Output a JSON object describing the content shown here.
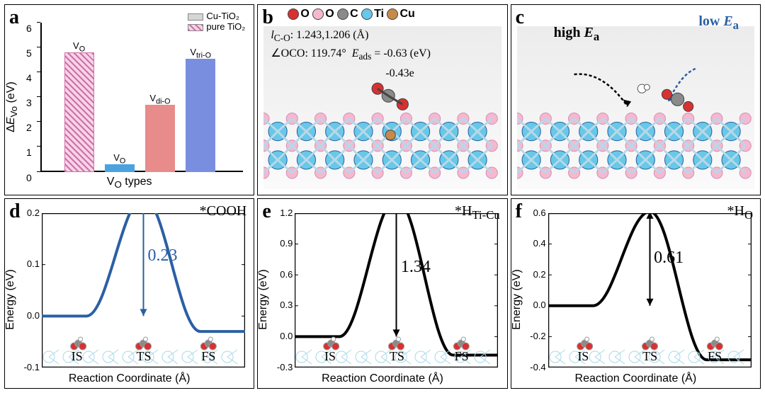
{
  "panelA": {
    "label": "a",
    "type": "bar",
    "ylabel": "ΔEᵥₒ (eV)",
    "xlabel": "Vₒ types",
    "ylim": [
      0,
      6
    ],
    "ytick_step": 1,
    "legend": [
      {
        "label": "Cu-TiO₂",
        "color": "#d6d6d6",
        "hatched": false
      },
      {
        "label": "pure TiO₂",
        "color": "#d06fa8",
        "hatched": true
      }
    ],
    "bars": [
      {
        "name": "Vₒ",
        "value": 4.8,
        "color": "#d06fa8",
        "hatched": true
      },
      {
        "name": "Vₒ",
        "value": 0.3,
        "color": "#4aa3df",
        "hatched": false
      },
      {
        "name": "V_di-O",
        "value": 2.7,
        "color": "#e88b8b",
        "hatched": false
      },
      {
        "name": "V_tri-O",
        "value": 4.55,
        "color": "#7a8ee0",
        "hatched": false
      }
    ],
    "background": "#ffffff",
    "axis_fontsize": 16,
    "tick_fontsize": 14
  },
  "panelB": {
    "label": "b",
    "atoms": [
      {
        "name": "O",
        "color": "#d83131"
      },
      {
        "name": "O",
        "color": "#f5b8cf"
      },
      {
        "name": "C",
        "color": "#8a8a8a"
      },
      {
        "name": "Ti",
        "color": "#67c8e8"
      },
      {
        "name": "Cu",
        "color": "#c88a4a"
      }
    ],
    "l_co_label": "I_C-O:",
    "l_co": "1.243,1.206 (Å)",
    "angle_label": "∠OCO:",
    "angle": "119.74°",
    "eads_label": "E_ads =",
    "eads": "-0.63 (eV)",
    "charge": "-0.43e"
  },
  "panelC": {
    "label": "c",
    "high_ea": "high Eₐ",
    "low_ea": "low Eₐ",
    "high_color": "#000000",
    "low_color": "#2a5fa3"
  },
  "panelD": {
    "label": "d",
    "species": "*COOH",
    "ylabel": "Energy (eV)",
    "xlabel": "Reaction Coordinate (Å)",
    "ylim": [
      -0.1,
      0.2
    ],
    "yticks": [
      -0.1,
      0.0,
      0.1,
      0.2
    ],
    "barrier": "0.23",
    "barrier_value": 0.23,
    "curve_color": "#2a5fa3",
    "states": [
      "IS",
      "TS",
      "FS"
    ],
    "start_y": 0.0,
    "end_y": -0.03
  },
  "panelE": {
    "label": "e",
    "species": "*H_Ti-Cu",
    "ylabel": "Energy (eV)",
    "xlabel": "Reaction Coordinate (Å)",
    "ylim": [
      -0.3,
      1.2
    ],
    "yticks": [
      -0.3,
      0.0,
      0.3,
      0.6,
      0.9,
      1.2
    ],
    "barrier": "1.34",
    "barrier_value": 1.34,
    "curve_color": "#000000",
    "states": [
      "IS",
      "TS",
      "FS"
    ],
    "start_y": 0.0,
    "end_y": -0.18
  },
  "panelF": {
    "label": "f",
    "species": "*Hₒ",
    "ylabel": "Energy (eV)",
    "xlabel": "Reaction Coordinate (Å)",
    "ylim": [
      -0.4,
      0.6
    ],
    "yticks": [
      -0.4,
      -0.2,
      0.0,
      0.2,
      0.4,
      0.6
    ],
    "barrier": "0.61",
    "barrier_value": 0.61,
    "curve_color": "#000000",
    "states": [
      "IS",
      "TS",
      "FS"
    ],
    "start_y": 0.0,
    "end_y": -0.35
  }
}
